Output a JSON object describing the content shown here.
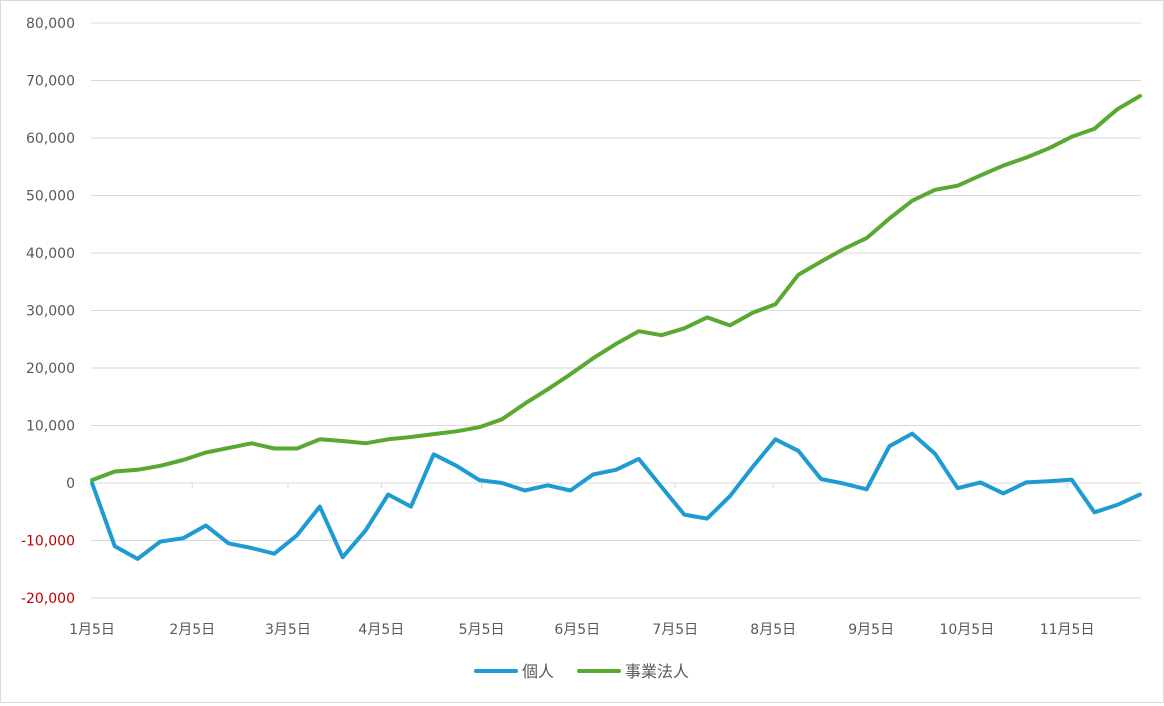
{
  "chart_data": {
    "type": "line",
    "title": "",
    "xlabel": "",
    "ylabel": "",
    "ylim": [
      -20000,
      80000
    ],
    "y_ticks": [
      80000,
      70000,
      60000,
      50000,
      40000,
      30000,
      20000,
      10000,
      0,
      -10000,
      -20000
    ],
    "y_tick_labels": [
      "80,000",
      "70,000",
      "60,000",
      "50,000",
      "40,000",
      "30,000",
      "20,000",
      "10,000",
      "0",
      "-10,000",
      "-20,000"
    ],
    "negative_tick_color": "#c00000",
    "x_tick_labels": [
      "1月5日",
      "2月5日",
      "3月5日",
      "4月5日",
      "5月5日",
      "6月5日",
      "7月5日",
      "8月5日",
      "9月5日",
      "10月5日",
      "11月5日"
    ],
    "x_tick_positions": [
      0,
      4.4,
      8.6,
      12.7,
      17.1,
      21.3,
      25.6,
      29.9,
      34.2,
      38.4,
      42.8
    ],
    "grid": true,
    "legend": "bottom",
    "series": [
      {
        "name": "個人",
        "color": "#1f9bd3",
        "values": [
          0,
          -11000,
          -13200,
          -10200,
          -9600,
          -7400,
          -10500,
          -11300,
          -12300,
          -9100,
          -4100,
          -12900,
          -8300,
          -2000,
          -4100,
          5000,
          3000,
          500,
          0,
          -1300,
          -400,
          -1300,
          1500,
          2300,
          4200,
          -700,
          -5500,
          -6200,
          -2300,
          2800,
          7600,
          5600,
          700,
          -100,
          -1100,
          6400,
          8600,
          5100,
          -900,
          100,
          -1800,
          100,
          300,
          600,
          -5100,
          -3800,
          -2000
        ]
      },
      {
        "name": "事業法人",
        "color": "#59a830",
        "values": [
          500,
          2000,
          2300,
          3000,
          4000,
          5300,
          6100,
          6900,
          6000,
          6000,
          7600,
          7300,
          6900,
          7600,
          8000,
          8500,
          9000,
          9700,
          11100,
          13800,
          16300,
          18900,
          21700,
          24200,
          26400,
          25700,
          26900,
          28800,
          27400,
          29600,
          31100,
          36200,
          38500,
          40700,
          42600,
          46000,
          49100,
          51000,
          51700,
          53500,
          55200,
          56600,
          58200,
          60200,
          61600,
          65000,
          67300
        ]
      }
    ]
  }
}
